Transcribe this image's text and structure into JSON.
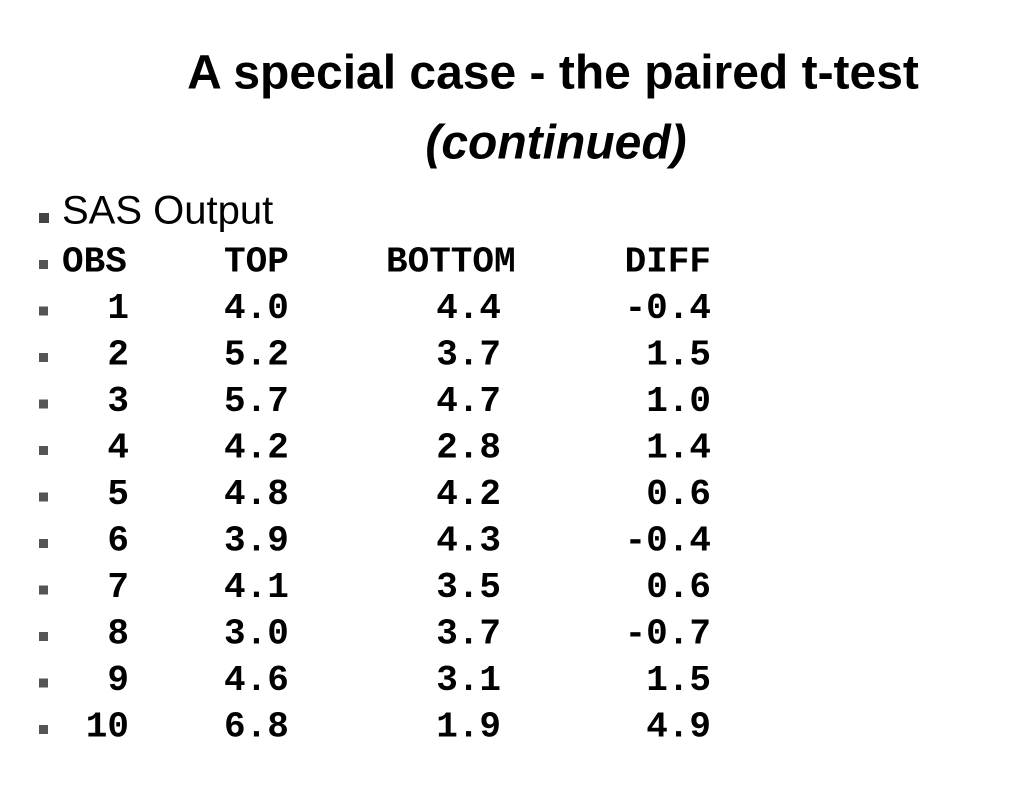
{
  "title": "A special case - the paired t-test",
  "subtitle": "(continued)",
  "bullet": "SAS Output",
  "table": {
    "header": [
      "OBS",
      "TOP",
      "BOTTOM",
      "DIFF"
    ],
    "rows": [
      [
        "1",
        "4.0",
        "4.4",
        "-0.4"
      ],
      [
        "2",
        "5.2",
        "3.7",
        "1.5"
      ],
      [
        "3",
        "5.7",
        "4.7",
        "1.0"
      ],
      [
        "4",
        "4.2",
        "2.8",
        "1.4"
      ],
      [
        "5",
        "4.8",
        "4.2",
        "0.6"
      ],
      [
        "6",
        "3.9",
        "4.3",
        "-0.4"
      ],
      [
        "7",
        "4.1",
        "3.5",
        "0.6"
      ],
      [
        "8",
        "3.0",
        "3.7",
        "-0.7"
      ],
      [
        "9",
        "4.6",
        "3.1",
        "1.5"
      ],
      [
        "10",
        "6.8",
        "1.9",
        "4.9"
      ]
    ]
  }
}
